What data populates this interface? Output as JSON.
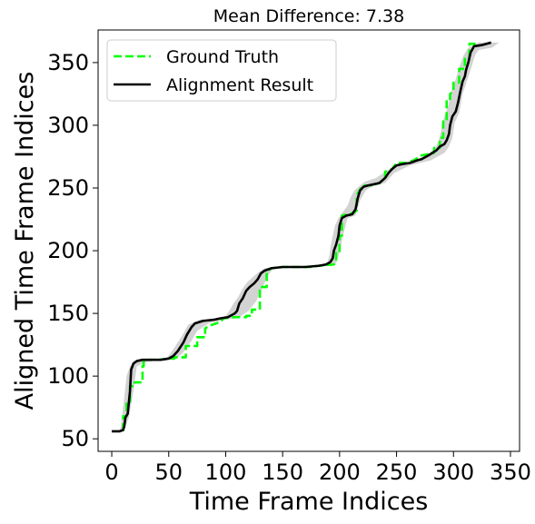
{
  "chart_data": {
    "type": "line",
    "title": "Mean Difference: 7.38",
    "xlabel": "Time Frame Indices",
    "ylabel": "Aligned Time Frame Indices",
    "xlim": [
      -12,
      358
    ],
    "ylim": [
      40,
      376
    ],
    "xticks": [
      0,
      50,
      100,
      150,
      200,
      250,
      300,
      350
    ],
    "yticks": [
      50,
      100,
      150,
      200,
      250,
      300,
      350
    ],
    "grid": false,
    "legend_position": "top-left",
    "series": [
      {
        "name": "Ground Truth",
        "color": "#00ff00",
        "style": "dashed",
        "points": [
          [
            10,
            56
          ],
          [
            10,
            68
          ],
          [
            13,
            68
          ],
          [
            13,
            78
          ],
          [
            16,
            78
          ],
          [
            16,
            92
          ],
          [
            20,
            92
          ],
          [
            20,
            95
          ],
          [
            27,
            95
          ],
          [
            27,
            108
          ],
          [
            28,
            108
          ],
          [
            28,
            112
          ],
          [
            32,
            113
          ],
          [
            40,
            113
          ],
          [
            52,
            114
          ],
          [
            55,
            114
          ],
          [
            55,
            115
          ],
          [
            65,
            115
          ],
          [
            65,
            124
          ],
          [
            75,
            124
          ],
          [
            75,
            131
          ],
          [
            82,
            131
          ],
          [
            82,
            138
          ],
          [
            85,
            140
          ],
          [
            95,
            143
          ],
          [
            98,
            146
          ],
          [
            108,
            147
          ],
          [
            118,
            147
          ],
          [
            118,
            148
          ],
          [
            123,
            148
          ],
          [
            123,
            153
          ],
          [
            130,
            153
          ],
          [
            130,
            171
          ],
          [
            133,
            171
          ],
          [
            133,
            171
          ],
          [
            136,
            171
          ],
          [
            136,
            183
          ],
          [
            140,
            186
          ],
          [
            150,
            187
          ],
          [
            160,
            187
          ],
          [
            176,
            187
          ],
          [
            182,
            188
          ],
          [
            195,
            189
          ],
          [
            197,
            191
          ],
          [
            197,
            198
          ],
          [
            200,
            198
          ],
          [
            200,
            212
          ],
          [
            202,
            212
          ],
          [
            202,
            228
          ],
          [
            212,
            230
          ],
          [
            215,
            232
          ],
          [
            215,
            244
          ],
          [
            220,
            252
          ],
          [
            228,
            252
          ],
          [
            235,
            254
          ],
          [
            240,
            258
          ],
          [
            240,
            263
          ],
          [
            246,
            265
          ],
          [
            250,
            270
          ],
          [
            258,
            270
          ],
          [
            265,
            272
          ],
          [
            272,
            276
          ],
          [
            278,
            277
          ],
          [
            283,
            278
          ],
          [
            283,
            282
          ],
          [
            288,
            282
          ],
          [
            288,
            290
          ],
          [
            291,
            290
          ],
          [
            291,
            304
          ],
          [
            294,
            304
          ],
          [
            294,
            320
          ],
          [
            297,
            320
          ],
          [
            297,
            325
          ],
          [
            300,
            327
          ],
          [
            300,
            334
          ],
          [
            305,
            334
          ],
          [
            305,
            345
          ],
          [
            310,
            345
          ],
          [
            310,
            354
          ],
          [
            314,
            355
          ],
          [
            314,
            365
          ],
          [
            320,
            365
          ]
        ]
      },
      {
        "name": "Alignment Result",
        "color": "#000000",
        "style": "solid",
        "points": [
          [
            0,
            56
          ],
          [
            7,
            56
          ],
          [
            10,
            57
          ],
          [
            11,
            60
          ],
          [
            12,
            67
          ],
          [
            14,
            70
          ],
          [
            16,
            88
          ],
          [
            17,
            105
          ],
          [
            19,
            110
          ],
          [
            22,
            112
          ],
          [
            27,
            113
          ],
          [
            35,
            113
          ],
          [
            43,
            113
          ],
          [
            50,
            114
          ],
          [
            54,
            116
          ],
          [
            58,
            120
          ],
          [
            63,
            127
          ],
          [
            66,
            133
          ],
          [
            70,
            139
          ],
          [
            73,
            142
          ],
          [
            80,
            144
          ],
          [
            90,
            145
          ],
          [
            95,
            146
          ],
          [
            102,
            147
          ],
          [
            108,
            150
          ],
          [
            110,
            152
          ],
          [
            112,
            158
          ],
          [
            115,
            162
          ],
          [
            118,
            168
          ],
          [
            121,
            171
          ],
          [
            125,
            174
          ],
          [
            128,
            177
          ],
          [
            131,
            182
          ],
          [
            134,
            184
          ],
          [
            140,
            186
          ],
          [
            150,
            187
          ],
          [
            160,
            187
          ],
          [
            170,
            187
          ],
          [
            182,
            188
          ],
          [
            188,
            189
          ],
          [
            192,
            191
          ],
          [
            194,
            194
          ],
          [
            195,
            200
          ],
          [
            197,
            205
          ],
          [
            199,
            212
          ],
          [
            200,
            220
          ],
          [
            202,
            226
          ],
          [
            206,
            228
          ],
          [
            211,
            229
          ],
          [
            214,
            233
          ],
          [
            216,
            242
          ],
          [
            218,
            248
          ],
          [
            221,
            251
          ],
          [
            225,
            252
          ],
          [
            230,
            253
          ],
          [
            235,
            254
          ],
          [
            240,
            258
          ],
          [
            243,
            262
          ],
          [
            246,
            265
          ],
          [
            250,
            268
          ],
          [
            255,
            269
          ],
          [
            262,
            270
          ],
          [
            268,
            272
          ],
          [
            272,
            273
          ],
          [
            278,
            276
          ],
          [
            285,
            280
          ],
          [
            288,
            283
          ],
          [
            292,
            285
          ],
          [
            294,
            288
          ],
          [
            296,
            293
          ],
          [
            297,
            300
          ],
          [
            299,
            307
          ],
          [
            302,
            311
          ],
          [
            304,
            318
          ],
          [
            306,
            327
          ],
          [
            308,
            335
          ],
          [
            310,
            339
          ],
          [
            311,
            344
          ],
          [
            313,
            350
          ],
          [
            315,
            358
          ],
          [
            318,
            363
          ],
          [
            325,
            364
          ],
          [
            333,
            366
          ]
        ]
      }
    ],
    "uncertainty_band": {
      "color": "#d3d3d3",
      "lower": [
        [
          7,
          56
        ],
        [
          10,
          57
        ],
        [
          13,
          62
        ],
        [
          15,
          67
        ],
        [
          19,
          88
        ],
        [
          22,
          108
        ],
        [
          30,
          111
        ],
        [
          42,
          113
        ],
        [
          55,
          113
        ],
        [
          62,
          118
        ],
        [
          70,
          128
        ],
        [
          75,
          136
        ],
        [
          85,
          142
        ],
        [
          100,
          145
        ],
        [
          112,
          147
        ],
        [
          120,
          152
        ],
        [
          127,
          160
        ],
        [
          132,
          170
        ],
        [
          137,
          180
        ],
        [
          142,
          186
        ],
        [
          160,
          187
        ],
        [
          180,
          187
        ],
        [
          193,
          188
        ],
        [
          197,
          190
        ],
        [
          200,
          199
        ],
        [
          203,
          212
        ],
        [
          207,
          226
        ],
        [
          214,
          228
        ],
        [
          218,
          240
        ],
        [
          223,
          248
        ],
        [
          228,
          251
        ],
        [
          240,
          254
        ],
        [
          248,
          262
        ],
        [
          262,
          268
        ],
        [
          280,
          272
        ],
        [
          292,
          278
        ],
        [
          296,
          283
        ],
        [
          299,
          290
        ],
        [
          301,
          302
        ],
        [
          305,
          310
        ],
        [
          308,
          325
        ],
        [
          312,
          336
        ],
        [
          316,
          347
        ],
        [
          319,
          356
        ],
        [
          322,
          360
        ],
        [
          334,
          362
        ]
      ],
      "upper": [
        [
          6,
          56
        ],
        [
          7,
          57
        ],
        [
          8,
          60
        ],
        [
          9,
          68
        ],
        [
          11,
          83
        ],
        [
          13,
          100
        ],
        [
          16,
          108
        ],
        [
          24,
          112
        ],
        [
          38,
          113
        ],
        [
          48,
          114
        ],
        [
          53,
          120
        ],
        [
          58,
          127
        ],
        [
          63,
          134
        ],
        [
          67,
          141
        ],
        [
          78,
          145
        ],
        [
          92,
          146
        ],
        [
          100,
          148
        ],
        [
          103,
          152
        ],
        [
          107,
          158
        ],
        [
          111,
          163
        ],
        [
          115,
          170
        ],
        [
          119,
          175
        ],
        [
          124,
          179
        ],
        [
          129,
          183
        ],
        [
          134,
          186
        ],
        [
          150,
          187
        ],
        [
          170,
          187
        ],
        [
          184,
          188
        ],
        [
          189,
          190
        ],
        [
          191,
          196
        ],
        [
          192,
          203
        ],
        [
          194,
          212
        ],
        [
          196,
          220
        ],
        [
          199,
          226
        ],
        [
          207,
          236
        ],
        [
          210,
          243
        ],
        [
          213,
          248
        ],
        [
          218,
          252
        ],
        [
          222,
          255
        ],
        [
          232,
          258
        ],
        [
          242,
          264
        ],
        [
          250,
          268
        ],
        [
          262,
          270
        ],
        [
          278,
          277
        ],
        [
          284,
          282
        ],
        [
          287,
          288
        ],
        [
          289,
          295
        ],
        [
          290,
          301
        ],
        [
          292,
          307
        ],
        [
          295,
          314
        ],
        [
          297,
          322
        ],
        [
          299,
          330
        ],
        [
          302,
          337
        ],
        [
          305,
          346
        ],
        [
          309,
          356
        ],
        [
          313,
          362
        ],
        [
          322,
          366
        ],
        [
          340,
          366
        ]
      ]
    }
  }
}
